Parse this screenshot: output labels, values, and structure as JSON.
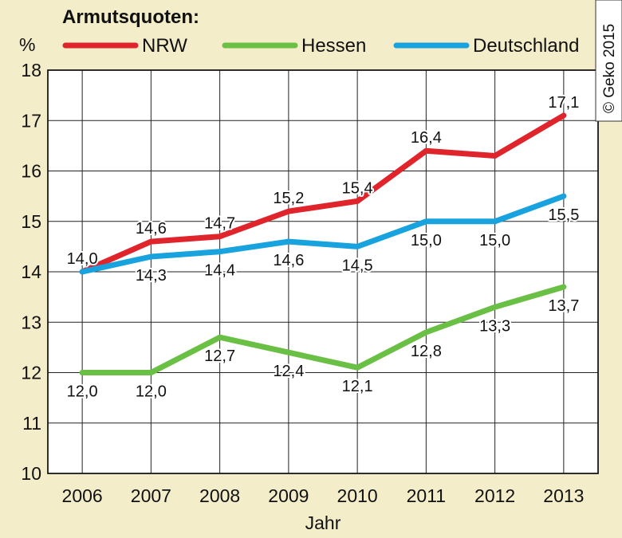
{
  "chart_data": {
    "type": "line",
    "title": "Armutsquoten:",
    "ylabel": "%",
    "xlabel": "Jahr",
    "x": [
      "2006",
      "2007",
      "2008",
      "2009",
      "2010",
      "2011",
      "2012",
      "2013"
    ],
    "ylim": [
      10,
      18
    ],
    "yticks": [
      "10",
      "11",
      "12",
      "13",
      "14",
      "15",
      "16",
      "17",
      "18"
    ],
    "grid": true,
    "legend_position": "top",
    "series": [
      {
        "name": "NRW",
        "color": "#e0242b",
        "values": [
          14.0,
          14.6,
          14.7,
          15.2,
          15.4,
          16.4,
          16.3,
          17.1
        ],
        "labels": [
          "14,0",
          "14,6",
          "14,7",
          "15,2",
          "15,4",
          "16,4",
          "",
          "17,1"
        ]
      },
      {
        "name": "Hessen",
        "color": "#6abf45",
        "values": [
          12.0,
          12.0,
          12.7,
          12.4,
          12.1,
          12.8,
          13.3,
          13.7
        ],
        "labels": [
          "12,0",
          "12,0",
          "12,7",
          "12,4",
          "12,1",
          "12,8",
          "13,3",
          "13,7"
        ]
      },
      {
        "name": "Deutschland",
        "color": "#19a3de",
        "values": [
          14.0,
          14.3,
          14.4,
          14.6,
          14.5,
          15.0,
          15.0,
          15.5
        ],
        "labels": [
          "",
          "14,3",
          "14,4",
          "14,6",
          "14,5",
          "15,0",
          "15,0",
          "15,5"
        ]
      }
    ]
  },
  "copyright": "© Geko 2015"
}
